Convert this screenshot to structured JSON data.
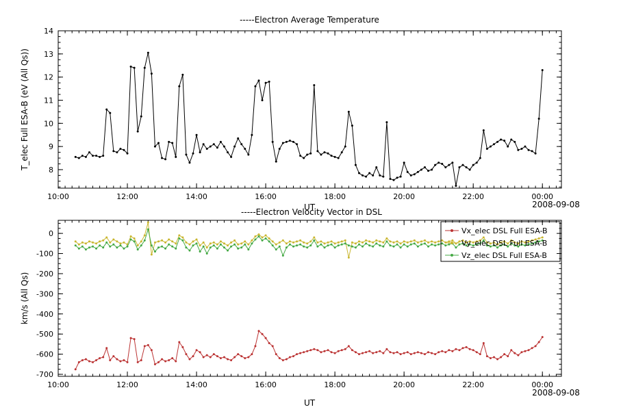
{
  "window": {
    "background": "#ffffff"
  },
  "chart_data": [
    {
      "type": "line",
      "title": "-----Electron Average Temperature",
      "xlabel": "UT",
      "ylabel": "T_elec Full ESA-B (eV (All Qs))",
      "date_label": "2008-09-08",
      "xlim": [
        10,
        24.55
      ],
      "ylim": [
        7.2,
        14
      ],
      "xticks": [
        10,
        12,
        14,
        16,
        18,
        20,
        22,
        24
      ],
      "xtick_labels": [
        "10:00",
        "12:00",
        "14:00",
        "16:00",
        "18:00",
        "20:00",
        "22:00",
        "00:00"
      ],
      "x_minor_step": 0.2,
      "yticks": [
        8,
        9,
        10,
        11,
        12,
        13,
        14
      ],
      "ytick_labels": [
        "8",
        "9",
        "10",
        "11",
        "12",
        "13",
        "14"
      ],
      "y_minor_step": 0.25,
      "grid": false,
      "legend": null,
      "series": [
        {
          "name": "T_elec Full ESA-B",
          "color": "#000000",
          "t0": 10.5,
          "dt": 0.1,
          "values": [
            8.55,
            8.5,
            8.6,
            8.55,
            8.75,
            8.6,
            8.6,
            8.55,
            8.6,
            10.6,
            10.45,
            8.8,
            8.75,
            8.9,
            8.85,
            8.7,
            12.45,
            12.4,
            9.65,
            10.3,
            12.4,
            13.05,
            12.15,
            9.0,
            9.15,
            8.5,
            8.45,
            9.2,
            9.15,
            8.55,
            11.6,
            12.1,
            8.65,
            8.3,
            8.7,
            9.5,
            8.75,
            9.1,
            8.9,
            9.0,
            9.1,
            8.95,
            9.2,
            9.0,
            8.75,
            8.55,
            9.0,
            9.35,
            9.1,
            8.9,
            8.65,
            9.5,
            11.6,
            11.85,
            11.0,
            11.75,
            11.8,
            9.2,
            8.35,
            8.9,
            9.15,
            9.2,
            9.25,
            9.2,
            9.1,
            8.6,
            8.5,
            8.65,
            8.7,
            11.65,
            8.8,
            8.65,
            8.75,
            8.7,
            8.6,
            8.55,
            8.5,
            8.75,
            9.0,
            10.5,
            9.9,
            8.2,
            7.85,
            7.75,
            7.7,
            7.85,
            7.75,
            8.1,
            7.75,
            7.7,
            10.05,
            7.6,
            7.55,
            7.65,
            7.7,
            8.3,
            7.9,
            7.75,
            7.8,
            7.9,
            8.0,
            8.1,
            7.95,
            8.0,
            8.2,
            8.3,
            8.25,
            8.1,
            8.2,
            8.3,
            7.3,
            8.1,
            8.2,
            8.1,
            8.0,
            8.2,
            8.3,
            8.5,
            9.7,
            8.9,
            9.0,
            9.1,
            9.2,
            9.3,
            9.25,
            9.0,
            9.3,
            9.2,
            8.85,
            8.9,
            9.0,
            8.85,
            8.8,
            8.7,
            10.2,
            12.3
          ]
        }
      ]
    },
    {
      "type": "line",
      "title": "-----Electron Velocity Vector in DSL",
      "xlabel": "UT",
      "ylabel": "km/s (All Qs)",
      "date_label": "2008-09-08",
      "xlim": [
        10,
        24.55
      ],
      "ylim": [
        -710,
        65
      ],
      "xticks": [
        10,
        12,
        14,
        16,
        18,
        20,
        22,
        24
      ],
      "xtick_labels": [
        "10:00",
        "12:00",
        "14:00",
        "16:00",
        "18:00",
        "20:00",
        "22:00",
        "00:00"
      ],
      "x_minor_step": 0.2,
      "yticks": [
        0,
        -100,
        -200,
        -300,
        -400,
        -500,
        -600,
        -700
      ],
      "ytick_labels": [
        "0",
        "-100",
        "-200",
        "-300",
        "-400",
        "-500",
        "-600",
        "-700"
      ],
      "y_minor_step": 25,
      "grid": false,
      "legend": {
        "position": "top-right",
        "entries": [
          "Vx_elec DSL Full ESA-B",
          "Vy_elec DSL Full ESA-B",
          "Vz_elec DSL Full ESA-B"
        ]
      },
      "series": [
        {
          "name": "Vx_elec DSL Full ESA-B",
          "color": "#bb3333",
          "t0": 10.5,
          "dt": 0.1,
          "values": [
            -675,
            -640,
            -630,
            -625,
            -635,
            -640,
            -630,
            -620,
            -615,
            -570,
            -630,
            -610,
            -625,
            -635,
            -630,
            -640,
            -520,
            -525,
            -640,
            -630,
            -560,
            -555,
            -580,
            -650,
            -640,
            -625,
            -635,
            -630,
            -620,
            -635,
            -540,
            -565,
            -600,
            -625,
            -610,
            -580,
            -590,
            -615,
            -605,
            -615,
            -600,
            -610,
            -620,
            -615,
            -625,
            -630,
            -615,
            -600,
            -610,
            -620,
            -615,
            -600,
            -560,
            -485,
            -500,
            -520,
            -545,
            -560,
            -600,
            -620,
            -630,
            -625,
            -615,
            -610,
            -600,
            -595,
            -590,
            -585,
            -580,
            -575,
            -580,
            -590,
            -585,
            -580,
            -590,
            -595,
            -585,
            -580,
            -575,
            -560,
            -580,
            -590,
            -600,
            -595,
            -590,
            -585,
            -595,
            -590,
            -585,
            -595,
            -575,
            -590,
            -595,
            -590,
            -600,
            -595,
            -590,
            -600,
            -595,
            -590,
            -595,
            -600,
            -590,
            -595,
            -600,
            -590,
            -585,
            -590,
            -580,
            -585,
            -575,
            -580,
            -570,
            -565,
            -575,
            -580,
            -590,
            -600,
            -545,
            -610,
            -620,
            -615,
            -625,
            -615,
            -600,
            -610,
            -580,
            -595,
            -605,
            -590,
            -585,
            -580,
            -570,
            -560,
            -540,
            -515
          ]
        },
        {
          "name": "Vy_elec DSL Full ESA-B",
          "color": "#c9b62f",
          "t0": 10.5,
          "dt": 0.1,
          "values": [
            -40,
            -55,
            -45,
            -50,
            -40,
            -45,
            -50,
            -40,
            -35,
            -20,
            -45,
            -30,
            -40,
            -50,
            -45,
            -55,
            -15,
            -25,
            -60,
            -40,
            -10,
            55,
            -105,
            -45,
            -40,
            -35,
            -45,
            -30,
            -40,
            -50,
            -10,
            -20,
            -45,
            -55,
            -40,
            -30,
            -60,
            -45,
            -70,
            -50,
            -45,
            -55,
            -40,
            -50,
            -60,
            -45,
            -35,
            -55,
            -50,
            -40,
            -55,
            -35,
            -15,
            -5,
            -20,
            -10,
            -25,
            -40,
            -55,
            -45,
            -35,
            -50,
            -40,
            -45,
            -40,
            -35,
            -45,
            -50,
            -40,
            -20,
            -45,
            -40,
            -50,
            -45,
            -40,
            -50,
            -45,
            -40,
            -35,
            -120,
            -45,
            -50,
            -40,
            -45,
            -35,
            -40,
            -45,
            -35,
            -40,
            -45,
            -25,
            -40,
            -45,
            -40,
            -50,
            -40,
            -45,
            -40,
            -35,
            -45,
            -40,
            -35,
            -45,
            -40,
            -45,
            -40,
            -35,
            -45,
            -40,
            -35,
            -50,
            -40,
            -35,
            -45,
            -40,
            -45,
            -40,
            -35,
            -20,
            -45,
            -50,
            -45,
            -55,
            -45,
            -40,
            -50,
            -35,
            -45,
            -50,
            -40,
            -45,
            -40,
            -35,
            -30,
            -25,
            -20
          ]
        },
        {
          "name": "Vz_elec DSL Full ESA-B",
          "color": "#44a944",
          "t0": 10.5,
          "dt": 0.1,
          "values": [
            -60,
            -75,
            -65,
            -80,
            -70,
            -65,
            -75,
            -60,
            -70,
            -45,
            -65,
            -55,
            -70,
            -60,
            -75,
            -65,
            -30,
            -40,
            -80,
            -60,
            -35,
            20,
            -60,
            -90,
            -70,
            -65,
            -75,
            -55,
            -65,
            -75,
            -25,
            -35,
            -70,
            -85,
            -60,
            -50,
            -90,
            -65,
            -100,
            -70,
            -60,
            -75,
            -55,
            -70,
            -85,
            -65,
            -55,
            -75,
            -70,
            -55,
            -80,
            -50,
            -30,
            -15,
            -35,
            -25,
            -40,
            -60,
            -80,
            -65,
            -110,
            -70,
            -55,
            -65,
            -60,
            -55,
            -65,
            -70,
            -60,
            -35,
            -65,
            -55,
            -70,
            -60,
            -55,
            -70,
            -60,
            -55,
            -50,
            -60,
            -65,
            -70,
            -55,
            -65,
            -50,
            -60,
            -65,
            -50,
            -60,
            -65,
            -40,
            -60,
            -65,
            -55,
            -70,
            -55,
            -65,
            -55,
            -50,
            -65,
            -55,
            -50,
            -65,
            -55,
            -60,
            -55,
            -50,
            -60,
            -55,
            -50,
            -70,
            -55,
            -50,
            -60,
            -55,
            -60,
            -55,
            -50,
            -35,
            -60,
            -65,
            -60,
            -70,
            -60,
            -55,
            -65,
            -50,
            -60,
            -65,
            -55,
            -60,
            -55,
            -50,
            -45,
            -40,
            -35
          ]
        }
      ]
    }
  ]
}
